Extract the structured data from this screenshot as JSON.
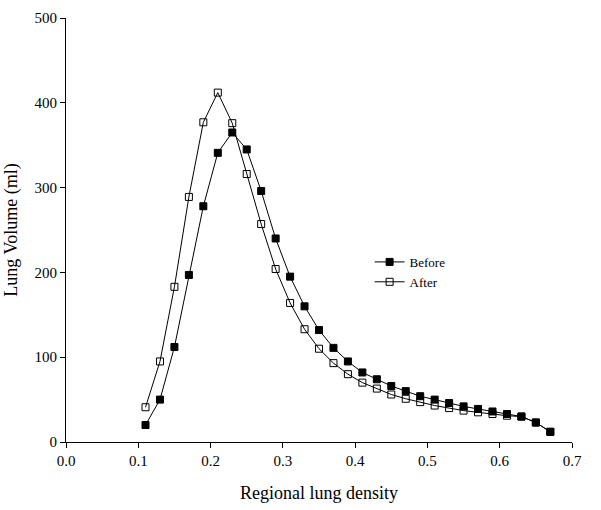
{
  "chart_data": {
    "type": "line",
    "x_label": "Regional lung density",
    "y_label": "Lung Volume (ml)",
    "x": [
      0.11,
      0.13,
      0.15,
      0.17,
      0.19,
      0.21,
      0.23,
      0.25,
      0.27,
      0.29,
      0.31,
      0.33,
      0.35,
      0.37,
      0.39,
      0.41,
      0.43,
      0.45,
      0.47,
      0.49,
      0.51,
      0.53,
      0.55,
      0.57,
      0.59,
      0.61,
      0.63,
      0.65,
      0.67
    ],
    "series": [
      {
        "name": "Before",
        "color": "#000000",
        "marker": "square",
        "line_style": "solid",
        "values": [
          20,
          50,
          112,
          197,
          278,
          341,
          365,
          345,
          296,
          240,
          195,
          160,
          132,
          111,
          95,
          82,
          74,
          66,
          60,
          54,
          50,
          46,
          42,
          39,
          36,
          33,
          30,
          23,
          12
        ]
      },
      {
        "name": "After",
        "color": "#000000",
        "marker": "square-open",
        "line_style": "solid",
        "values": [
          41,
          95,
          183,
          289,
          377,
          412,
          376,
          316,
          257,
          204,
          164,
          133,
          110,
          93,
          80,
          70,
          63,
          56,
          51,
          47,
          43,
          40,
          37,
          35,
          33,
          31,
          30,
          23,
          12
        ]
      }
    ],
    "xlim": [
      0,
      0.7
    ],
    "xticks": [
      {
        "value": 0,
        "label": "0.0"
      },
      0.1,
      0.2,
      0.3,
      0.4,
      0.5,
      0.6,
      0.7
    ],
    "ylim": [
      0,
      500
    ],
    "yticks": [
      0,
      100,
      200,
      300,
      400,
      500
    ],
    "grid": false,
    "legend": "right"
  }
}
